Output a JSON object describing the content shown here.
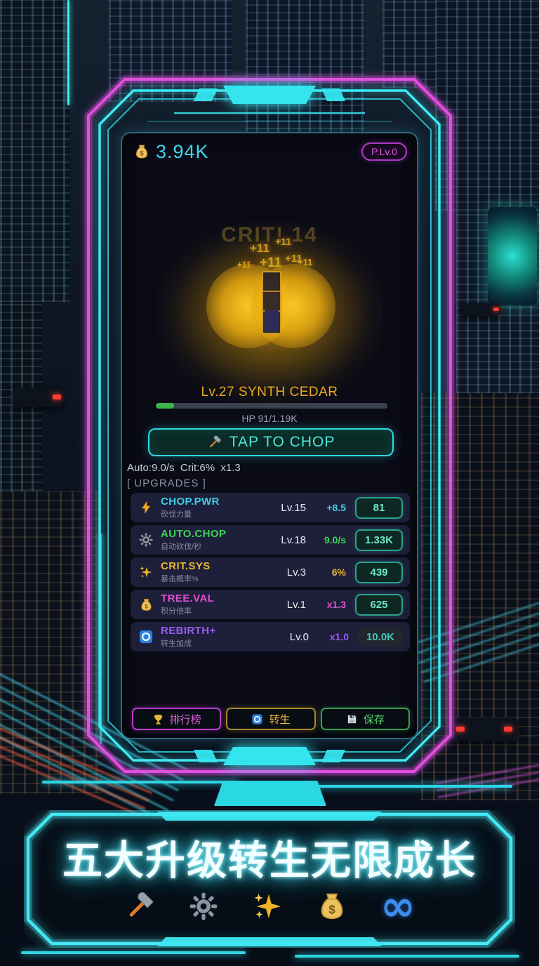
{
  "colors": {
    "neon_cyan": "#3fe8f2",
    "neon_magenta": "#e24fe0",
    "gold": "#e8a825",
    "screen_bg": "#0a0b16",
    "hp_green": "#3eb34a"
  },
  "topbar": {
    "money_icon": "money-bag-icon",
    "balance": "3.94K",
    "badge": "P.Lv.0"
  },
  "arena": {
    "crit_popup": "CRIT! 14",
    "floaters": [
      "+11",
      "+11",
      "+11",
      "+11",
      "+11",
      "+11"
    ],
    "tree_label": "Lv.27 SYNTH CEDAR",
    "hp_text": "HP 91/1.19K",
    "hp_percent": 8
  },
  "tap_button": {
    "icon": "axe-icon",
    "label": "TAP TO CHOP"
  },
  "stats_line": "Auto:9.0/s  Crit:6%  x1.3",
  "upgrades": {
    "header": "[ UPGRADES ]",
    "items": [
      {
        "icon": "lightning-icon",
        "name": "CHOP.PWR",
        "subtitle": "砍伐力量",
        "level": "Lv.15",
        "value": "+8.5",
        "cost": "81",
        "color": "#3fcfe8"
      },
      {
        "icon": "gear-icon",
        "name": "AUTO.CHOP",
        "subtitle": "自动砍伐/秒",
        "level": "Lv.18",
        "value": "9.0/s",
        "cost": "1.33K",
        "color": "#3ad455"
      },
      {
        "icon": "sparkle-icon",
        "name": "CRIT.SYS",
        "subtitle": "暴击概率%",
        "level": "Lv.3",
        "value": "6%",
        "cost": "439",
        "color": "#e8b62f"
      },
      {
        "icon": "money-bag-icon",
        "name": "TREE.VAL",
        "subtitle": "积分倍率",
        "level": "Lv.1",
        "value": "x1.3",
        "cost": "625",
        "color": "#e24fd0"
      },
      {
        "icon": "rebirth-icon",
        "name": "REBIRTH+",
        "subtitle": "转生加成",
        "level": "Lv.0",
        "value": "x1.0",
        "cost": "10.0K",
        "color": "#9a5af2",
        "cost_disabled": true
      }
    ]
  },
  "footer_buttons": [
    {
      "icon": "trophy-icon",
      "label": "排行榜",
      "color": "#e060e0"
    },
    {
      "icon": "rebirth-icon",
      "label": "转生",
      "color": "#e8bc3c"
    },
    {
      "icon": "save-icon",
      "label": "保存",
      "color": "#55d86a"
    }
  ],
  "banner": {
    "title": "五大升级转生无限成长",
    "icons": [
      "axe-icon",
      "gear-icon",
      "sparkles-icon",
      "money-bag-icon",
      "infinity-icon"
    ]
  }
}
